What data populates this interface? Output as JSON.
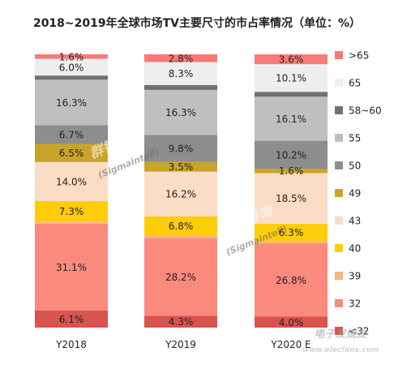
{
  "chart_data": {
    "type": "bar",
    "stacked": true,
    "percent": true,
    "title": "2018~2019年全球市场TV主要尺寸的市占率情况（单位：%）",
    "categories": [
      "Y2018",
      "Y2019",
      "Y2020 E"
    ],
    "series": [
      {
        "name": "<32",
        "color": "#d9534f",
        "values": [
          6.1,
          4.3,
          4.0
        ]
      },
      {
        "name": "32",
        "color": "#fa8a7e",
        "values": [
          31.1,
          28.2,
          26.8
        ]
      },
      {
        "name": "39",
        "color": "#fbb483",
        "values": [
          0.8,
          1.0,
          0.9
        ]
      },
      {
        "name": "40",
        "color": "#fecd0a",
        "values": [
          7.3,
          6.8,
          6.3
        ]
      },
      {
        "name": "43",
        "color": "#fbdcc5",
        "values": [
          14.0,
          16.2,
          18.5
        ]
      },
      {
        "name": "49",
        "color": "#c9a42a",
        "values": [
          6.5,
          3.5,
          1.6
        ]
      },
      {
        "name": "50",
        "color": "#8d8d8d",
        "values": [
          6.7,
          9.8,
          10.2
        ]
      },
      {
        "name": "55",
        "color": "#bfbfbf",
        "values": [
          16.3,
          16.3,
          16.1
        ]
      },
      {
        "name": "58~60",
        "color": "#707070",
        "values": [
          1.5,
          1.8,
          1.8
        ]
      },
      {
        "name": "65",
        "color": "#eeeeee",
        "values": [
          6.0,
          8.3,
          10.1
        ]
      },
      {
        "name": ">65",
        "color": "#fa7a78",
        "values": [
          1.6,
          2.8,
          3.6
        ]
      }
    ],
    "data_labels": [
      [
        "6.1%",
        "31.1%",
        "",
        "7.3%",
        "14.0%",
        "6.5%",
        "6.7%",
        "16.3%",
        "",
        "6.0%",
        "1.6%"
      ],
      [
        "4.3%",
        "28.2%",
        "",
        "6.8%",
        "16.2%",
        "3.5%",
        "9.8%",
        "16.3%",
        "",
        "8.3%",
        "2.8%"
      ],
      [
        "4.0%",
        "26.8%",
        "",
        "6.3%",
        "18.5%",
        "1.6%",
        "10.2%",
        "16.1%",
        "",
        "10.1%",
        "3.6%"
      ]
    ],
    "legend_order": [
      ">65",
      "65",
      "58~60",
      "55",
      "50",
      "49",
      "43",
      "40",
      "39",
      "32",
      "<32"
    ],
    "legend_position": "right",
    "ylim": [
      0,
      100
    ],
    "grid": false
  },
  "watermarks": {
    "brand_cn": "群智咨询",
    "brand_en": "(Sigmaintell)",
    "site_cn": "电子发烧友",
    "site_en": "www.elecfans.com"
  }
}
